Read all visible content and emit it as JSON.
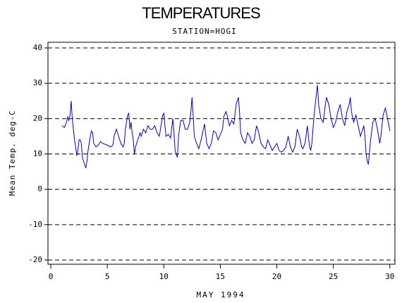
{
  "chart_data": {
    "type": "line",
    "title": "TEMPERATURES",
    "subtitle": "STATION=HOGI",
    "x_label": "MAY 1994",
    "y_label": "Mean Temp. deg-C",
    "color": "#0000cc",
    "grid": true,
    "xlim": [
      -0.25,
      30.45
    ],
    "xticks": [
      0,
      5,
      10,
      15,
      20,
      25,
      30
    ],
    "ylim": [
      -21.2,
      41.6
    ],
    "yticks": [
      -20,
      -10,
      0,
      10,
      20,
      30,
      40
    ],
    "x": [
      1.0,
      1.2,
      1.4,
      1.5,
      1.6,
      1.7,
      1.8,
      1.9,
      2.0,
      2.1,
      2.2,
      2.3,
      2.4,
      2.5,
      2.6,
      2.7,
      2.8,
      2.9,
      3.0,
      3.1,
      3.2,
      3.3,
      3.5,
      3.6,
      3.7,
      3.8,
      4.0,
      4.2,
      4.4,
      4.6,
      5.0,
      5.3,
      5.5,
      5.6,
      5.8,
      6.0,
      6.2,
      6.4,
      6.5,
      6.6,
      6.8,
      6.9,
      7.0,
      7.1,
      7.2,
      7.3,
      7.4,
      7.5,
      7.7,
      7.9,
      8.0,
      8.2,
      8.4,
      8.6,
      8.8,
      9.0,
      9.2,
      9.4,
      9.6,
      9.8,
      9.9,
      10.0,
      10.1,
      10.2,
      10.4,
      10.6,
      10.8,
      10.9,
      11.0,
      11.1,
      11.2,
      11.3,
      11.5,
      11.7,
      11.9,
      12.1,
      12.3,
      12.4,
      12.5,
      12.6,
      12.7,
      12.9,
      13.1,
      13.3,
      13.5,
      13.6,
      13.8,
      14.0,
      14.2,
      14.4,
      14.6,
      14.8,
      15.0,
      15.2,
      15.3,
      15.5,
      15.6,
      15.8,
      16.0,
      16.2,
      16.4,
      16.6,
      16.7,
      16.8,
      17.0,
      17.2,
      17.4,
      17.6,
      17.8,
      18.0,
      18.2,
      18.4,
      18.6,
      18.8,
      19.0,
      19.2,
      19.4,
      19.6,
      19.8,
      20.0,
      20.2,
      20.4,
      20.6,
      20.8,
      21.0,
      21.2,
      21.4,
      21.6,
      21.8,
      22.0,
      22.2,
      22.3,
      22.5,
      22.7,
      22.9,
      23.0,
      23.1,
      23.3,
      23.4,
      23.5,
      23.6,
      23.7,
      23.9,
      24.1,
      24.3,
      24.4,
      24.6,
      24.8,
      25.0,
      25.2,
      25.4,
      25.6,
      25.8,
      26.0,
      26.2,
      26.4,
      26.5,
      26.6,
      26.8,
      27.0,
      27.2,
      27.4,
      27.6,
      27.7,
      27.8,
      27.9,
      28.0,
      28.1,
      28.3,
      28.5,
      28.7,
      28.9,
      29.1,
      29.2,
      29.4,
      29.6,
      29.8,
      30.0
    ],
    "values": [
      18,
      17.5,
      19,
      20.5,
      19.5,
      21,
      25,
      20,
      17,
      14,
      12,
      9.5,
      11,
      14,
      14,
      13,
      9,
      8,
      7,
      6,
      8,
      11,
      15,
      16.5,
      16,
      13,
      12,
      12.5,
      13.5,
      13,
      12.5,
      12,
      12.5,
      15,
      17,
      15,
      13,
      12,
      13,
      17,
      21,
      21.5,
      17,
      19,
      16,
      14,
      10,
      12,
      14,
      16,
      15,
      17,
      16,
      18,
      17,
      17,
      18,
      16,
      15,
      19,
      21,
      21.5,
      18,
      15,
      15.5,
      14.5,
      20,
      16,
      11,
      10,
      9,
      15,
      19.5,
      19.5,
      17,
      17,
      19,
      22,
      26,
      21,
      15,
      13,
      11.5,
      14,
      17,
      18.5,
      13,
      11.5,
      13,
      16.5,
      16,
      14,
      15.5,
      17,
      20.5,
      22,
      21,
      18,
      19.5,
      18.5,
      24,
      26,
      22,
      16,
      14,
      13,
      16,
      15,
      13,
      14,
      18,
      16,
      13,
      12,
      11.5,
      14,
      12.5,
      11,
      12,
      13,
      11,
      10.5,
      11,
      12,
      15,
      12,
      10.5,
      12,
      17,
      15,
      12,
      11.5,
      13,
      18,
      12,
      11,
      13,
      21,
      24,
      27,
      29.5,
      24,
      20,
      19,
      24,
      26,
      24,
      20,
      17.5,
      19,
      22,
      24,
      20,
      18,
      22,
      24,
      26,
      22,
      19,
      21,
      18,
      15,
      17,
      18,
      15,
      10,
      8,
      7,
      14,
      19,
      20,
      17,
      13,
      15,
      21,
      23,
      20,
      16.5
    ]
  }
}
